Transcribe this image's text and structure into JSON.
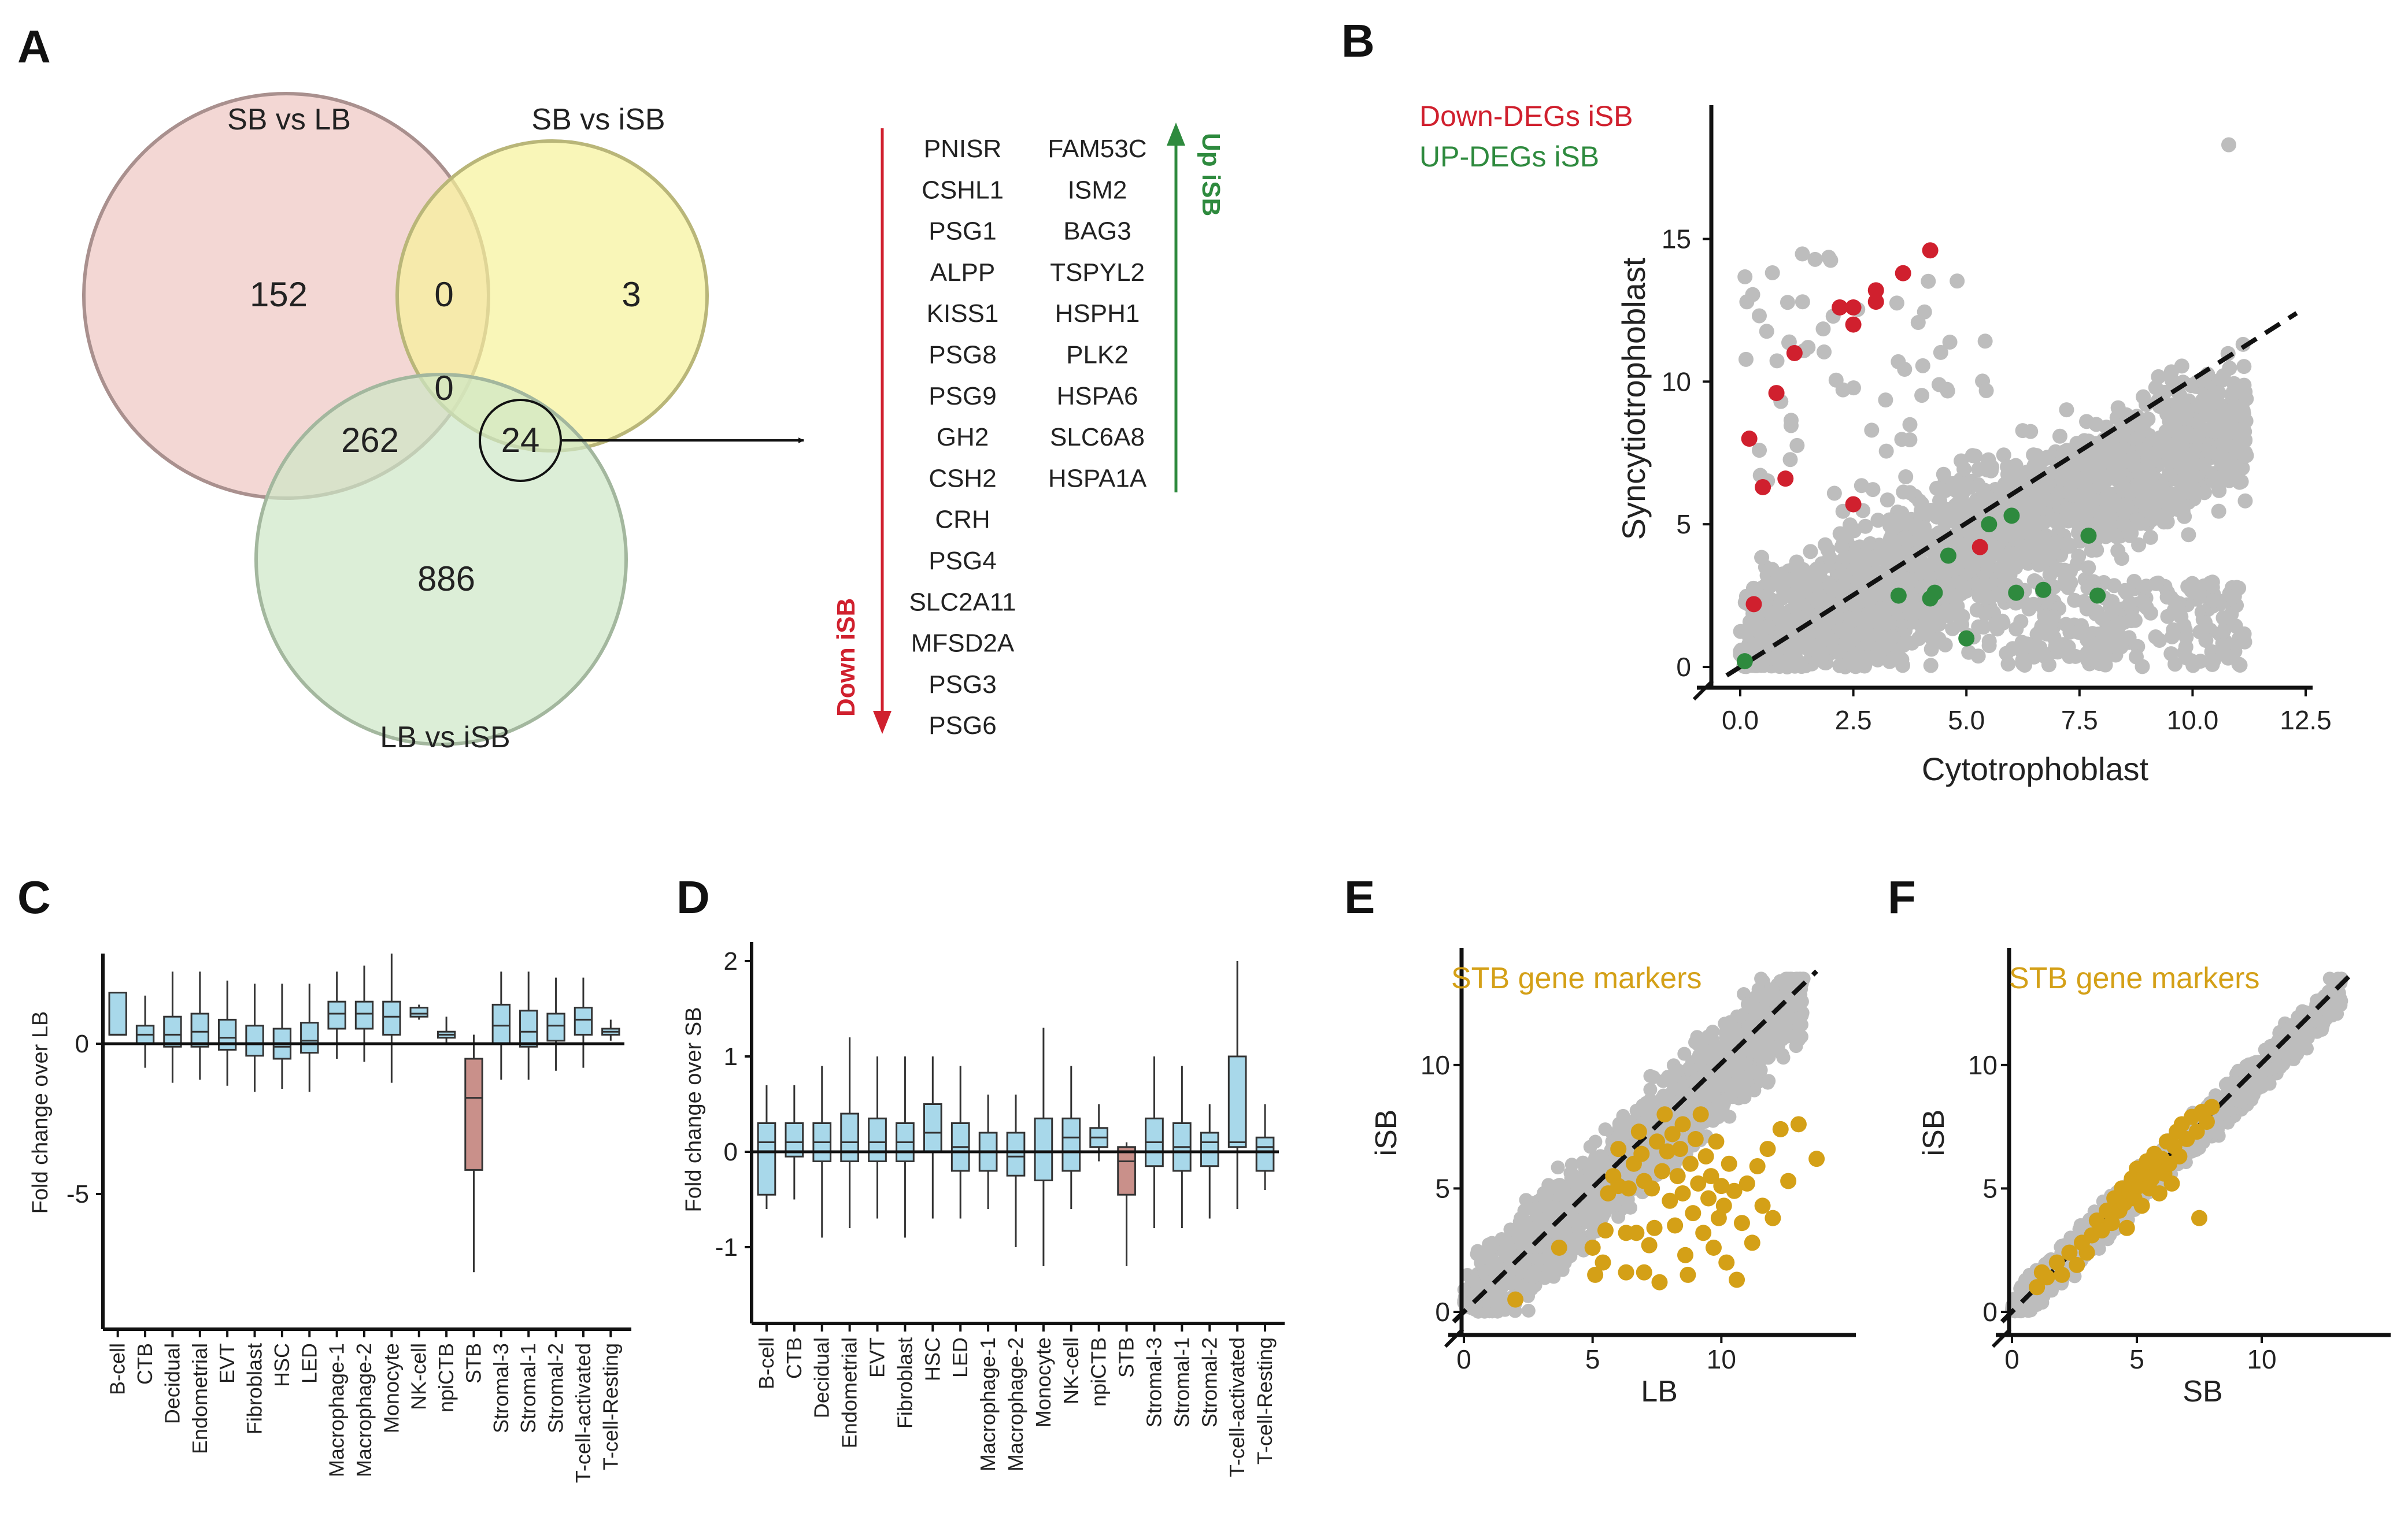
{
  "panels": {
    "A": "A",
    "B": "B",
    "C": "C",
    "D": "D",
    "E": "E",
    "F": "F"
  },
  "colors": {
    "venn_sb_lb": "#efc9c6",
    "venn_sb_isb": "#f6f29a",
    "venn_lb_isb": "#cde7c6",
    "down": "#d0202e",
    "up": "#2e8a3e",
    "box_fill": "#a8d8ea",
    "box_stb": "#c9908a",
    "points_bg": "#bdbdbd",
    "markers": "#d4a017"
  },
  "venn": {
    "labels": {
      "sb_lb": "SB vs LB",
      "sb_isb": "SB vs iSB",
      "lb_isb": "LB vs iSB"
    },
    "counts": {
      "sb_lb_only": "152",
      "sb_isb_only": "3",
      "lb_isb_only": "886",
      "sb_lb_and_sb_isb": "0",
      "all_three": "0",
      "sb_lb_and_lb_isb": "262",
      "sb_isb_and_lb_isb": "24"
    }
  },
  "genes": {
    "down": [
      "PNISR",
      "CSHL1",
      "PSG1",
      "ALPP",
      "KISS1",
      "PSG8",
      "PSG9",
      "GH2",
      "CSH2",
      "CRH",
      "PSG4",
      "SLC2A11",
      "MFSD2A",
      "PSG3",
      "PSG6"
    ],
    "up": [
      "FAM53C",
      "ISM2",
      "BAG3",
      "TSPYL2",
      "HSPH1",
      "PLK2",
      "HSPA6",
      "SLC6A8",
      "HSPA1A"
    ],
    "down_label": "Down iSB",
    "up_label": "Up iSB"
  },
  "chart_data": [
    {
      "id": "B",
      "type": "scatter",
      "xlabel": "Cytotrophoblast",
      "ylabel": "Syncytiotrophoblast",
      "xlim": [
        0,
        12.5
      ],
      "ylim": [
        0,
        19
      ],
      "xticks": [
        "0.0",
        "2.5",
        "5.0",
        "7.5",
        "10.0",
        "12.5"
      ],
      "yticks": [
        "0",
        "5",
        "10",
        "15"
      ],
      "legend": [
        "Down-DEGs iSB",
        "UP-DEGs iSB"
      ],
      "series": [
        {
          "name": "Down-DEGs iSB",
          "points": [
            [
              0.2,
              8.0
            ],
            [
              0.3,
              2.2
            ],
            [
              0.5,
              6.3
            ],
            [
              0.8,
              9.6
            ],
            [
              1.0,
              6.6
            ],
            [
              1.2,
              11.0
            ],
            [
              2.2,
              12.6
            ],
            [
              2.5,
              12.0
            ],
            [
              2.5,
              12.6
            ],
            [
              2.5,
              5.7
            ],
            [
              3.0,
              12.8
            ],
            [
              3.0,
              13.2
            ],
            [
              3.6,
              13.8
            ],
            [
              4.2,
              14.6
            ],
            [
              5.3,
              4.2
            ]
          ]
        },
        {
          "name": "UP-DEGs iSB",
          "points": [
            [
              0.1,
              0.2
            ],
            [
              3.5,
              2.5
            ],
            [
              4.2,
              2.4
            ],
            [
              4.3,
              2.6
            ],
            [
              4.6,
              3.9
            ],
            [
              5.0,
              1.0
            ],
            [
              5.5,
              5.0
            ],
            [
              6.0,
              5.3
            ],
            [
              6.1,
              2.6
            ],
            [
              6.7,
              2.7
            ],
            [
              7.7,
              4.6
            ],
            [
              7.9,
              2.5
            ]
          ]
        }
      ]
    },
    {
      "id": "C",
      "type": "box",
      "ylabel": "Fold change over LB",
      "ylim": [
        -9.5,
        3.0
      ],
      "yticks": [
        "0",
        "-5"
      ],
      "categories": [
        "B-cell",
        "CTB",
        "Decidual",
        "Endometrial",
        "EVT",
        "Fibroblast",
        "HSC",
        "LED",
        "Macrophage-1",
        "Macrophage-2",
        "Monocyte",
        "NK-cell",
        "npiCTB",
        "STB",
        "Stromal-3",
        "Stromal-1",
        "Stromal-2",
        "T-cell-activated",
        "T-cell-Resting"
      ],
      "boxes": [
        [
          0.3,
          0.3,
          0.3,
          1.7,
          1.7
        ],
        [
          -0.8,
          0.0,
          0.3,
          0.6,
          1.6
        ],
        [
          -1.3,
          -0.1,
          0.3,
          0.9,
          2.4
        ],
        [
          -1.2,
          -0.1,
          0.4,
          1.0,
          2.4
        ],
        [
          -1.4,
          -0.2,
          0.2,
          0.8,
          2.1
        ],
        [
          -1.6,
          -0.4,
          0.0,
          0.6,
          2.0
        ],
        [
          -1.5,
          -0.5,
          -0.1,
          0.5,
          2.0
        ],
        [
          -1.6,
          -0.3,
          0.1,
          0.7,
          2.0
        ],
        [
          -0.5,
          0.5,
          1.0,
          1.4,
          2.4
        ],
        [
          -0.6,
          0.5,
          1.0,
          1.4,
          2.6
        ],
        [
          -1.3,
          0.3,
          0.9,
          1.4,
          3.0
        ],
        [
          0.8,
          0.9,
          1.0,
          1.2,
          1.3
        ],
        [
          0.0,
          0.2,
          0.3,
          0.4,
          0.9
        ],
        [
          -7.6,
          -4.2,
          -1.8,
          -0.5,
          0.3
        ],
        [
          -1.2,
          0.0,
          0.6,
          1.3,
          2.4
        ],
        [
          -1.2,
          -0.1,
          0.4,
          1.1,
          2.4
        ],
        [
          -0.9,
          0.1,
          0.6,
          1.0,
          2.2
        ],
        [
          -0.8,
          0.3,
          0.8,
          1.2,
          2.2
        ],
        [
          0.1,
          0.3,
          0.4,
          0.5,
          0.8
        ]
      ]
    },
    {
      "id": "D",
      "type": "box",
      "ylabel": "Fold change over SB",
      "ylim": [
        -1.8,
        2.2
      ],
      "yticks": [
        "2",
        "1",
        "0",
        "-1"
      ],
      "categories": [
        "B-cell",
        "CTB",
        "Decidual",
        "Endometrial",
        "EVT",
        "Fibroblast",
        "HSC",
        "LED",
        "Macrophage-1",
        "Macrophage-2",
        "Monocyte",
        "NK-cell",
        "npiCTB",
        "STB",
        "Stromal-3",
        "Stromal-1",
        "Stromal-2",
        "T-cell-activated",
        "T-cell-Resting"
      ],
      "boxes": [
        [
          -0.6,
          -0.45,
          0.1,
          0.3,
          0.7
        ],
        [
          -0.5,
          -0.05,
          0.1,
          0.3,
          0.7
        ],
        [
          -0.9,
          -0.1,
          0.1,
          0.3,
          0.9
        ],
        [
          -0.8,
          -0.1,
          0.1,
          0.4,
          1.2
        ],
        [
          -0.7,
          -0.1,
          0.1,
          0.35,
          1.0
        ],
        [
          -0.9,
          -0.1,
          0.1,
          0.3,
          1.0
        ],
        [
          -0.7,
          0.0,
          0.2,
          0.5,
          1.0
        ],
        [
          -0.7,
          -0.2,
          0.05,
          0.3,
          0.9
        ],
        [
          -0.6,
          -0.2,
          0.0,
          0.2,
          0.6
        ],
        [
          -1.0,
          -0.25,
          -0.05,
          0.2,
          0.6
        ],
        [
          -1.2,
          -0.3,
          0.0,
          0.35,
          1.3
        ],
        [
          -0.6,
          -0.2,
          0.15,
          0.35,
          0.9
        ],
        [
          -0.1,
          0.05,
          0.15,
          0.25,
          0.5
        ],
        [
          -1.2,
          -0.45,
          -0.1,
          0.05,
          0.1
        ],
        [
          -0.8,
          -0.15,
          0.1,
          0.35,
          1.0
        ],
        [
          -0.8,
          -0.2,
          0.05,
          0.3,
          0.9
        ],
        [
          -0.7,
          -0.15,
          0.1,
          0.2,
          0.5
        ],
        [
          -0.6,
          0.05,
          0.1,
          1.0,
          2.0
        ],
        [
          -0.4,
          -0.2,
          0.05,
          0.15,
          0.5
        ]
      ]
    },
    {
      "id": "E",
      "type": "scatter",
      "xlabel": "LB",
      "ylabel": "iSB",
      "legend": "STB gene markers",
      "xlim": [
        0,
        15
      ],
      "ylim": [
        0,
        14
      ],
      "xticks": [
        "0",
        "5",
        "10"
      ],
      "yticks": [
        "0",
        "5",
        "10"
      ],
      "markers": [
        [
          2,
          0.5
        ],
        [
          3.7,
          2.6
        ],
        [
          5.0,
          2.6
        ],
        [
          5.1,
          1.5
        ],
        [
          5.4,
          2.0
        ],
        [
          5.5,
          3.3
        ],
        [
          5.6,
          4.8
        ],
        [
          5.8,
          5.5
        ],
        [
          6.0,
          6.6
        ],
        [
          6.0,
          5.1
        ],
        [
          6.3,
          1.6
        ],
        [
          6.3,
          3.2
        ],
        [
          6.4,
          5.0
        ],
        [
          6.6,
          6.0
        ],
        [
          6.7,
          3.2
        ],
        [
          6.8,
          7.3
        ],
        [
          6.9,
          6.4
        ],
        [
          7.0,
          1.6
        ],
        [
          7.0,
          5.3
        ],
        [
          7.2,
          2.7
        ],
        [
          7.3,
          5.0
        ],
        [
          7.4,
          3.4
        ],
        [
          7.5,
          6.9
        ],
        [
          7.6,
          1.2
        ],
        [
          7.7,
          5.7
        ],
        [
          7.8,
          8.0
        ],
        [
          7.9,
          6.5
        ],
        [
          8.0,
          4.5
        ],
        [
          8.1,
          7.2
        ],
        [
          8.2,
          3.5
        ],
        [
          8.3,
          5.5
        ],
        [
          8.4,
          6.6
        ],
        [
          8.5,
          7.6
        ],
        [
          8.5,
          4.8
        ],
        [
          8.6,
          2.3
        ],
        [
          8.7,
          1.5
        ],
        [
          8.8,
          6.0
        ],
        [
          8.9,
          4.0
        ],
        [
          9.0,
          7.0
        ],
        [
          9.1,
          5.2
        ],
        [
          9.2,
          8.0
        ],
        [
          9.3,
          3.2
        ],
        [
          9.4,
          6.3
        ],
        [
          9.5,
          4.6
        ],
        [
          9.6,
          5.5
        ],
        [
          9.7,
          2.6
        ],
        [
          9.8,
          6.9
        ],
        [
          9.9,
          3.8
        ],
        [
          10.0,
          5.1
        ],
        [
          10.1,
          4.3
        ],
        [
          10.2,
          2.0
        ],
        [
          10.3,
          6.0
        ],
        [
          10.5,
          4.9
        ],
        [
          10.6,
          1.3
        ],
        [
          10.8,
          3.6
        ],
        [
          11.0,
          5.2
        ],
        [
          11.2,
          2.8
        ],
        [
          11.4,
          5.9
        ],
        [
          11.6,
          4.3
        ],
        [
          11.8,
          6.6
        ],
        [
          12.0,
          3.8
        ],
        [
          12.3,
          7.4
        ],
        [
          12.6,
          5.3
        ],
        [
          13.0,
          7.6
        ],
        [
          13.7,
          6.2
        ]
      ]
    },
    {
      "id": "F",
      "type": "scatter",
      "xlabel": "SB",
      "ylabel": "iSB",
      "legend": "STB gene markers",
      "xlim": [
        0,
        15
      ],
      "ylim": [
        0,
        14
      ],
      "xticks": [
        "0",
        "5",
        "10"
      ],
      "yticks": [
        "0",
        "5",
        "10"
      ],
      "markers": [
        [
          1.0,
          1.0
        ],
        [
          1.2,
          1.6
        ],
        [
          1.4,
          1.4
        ],
        [
          1.8,
          2.0
        ],
        [
          2.0,
          1.5
        ],
        [
          2.3,
          2.4
        ],
        [
          2.6,
          1.9
        ],
        [
          2.8,
          2.8
        ],
        [
          3.0,
          2.4
        ],
        [
          3.2,
          3.1
        ],
        [
          3.4,
          3.7
        ],
        [
          3.6,
          3.3
        ],
        [
          3.8,
          4.1
        ],
        [
          4.0,
          3.6
        ],
        [
          4.1,
          4.6
        ],
        [
          4.3,
          4.1
        ],
        [
          4.4,
          5.0
        ],
        [
          4.5,
          4.4
        ],
        [
          4.6,
          3.4
        ],
        [
          4.7,
          4.9
        ],
        [
          4.8,
          5.4
        ],
        [
          4.9,
          4.6
        ],
        [
          5.0,
          5.8
        ],
        [
          5.1,
          5.1
        ],
        [
          5.2,
          4.3
        ],
        [
          5.3,
          5.6
        ],
        [
          5.4,
          6.1
        ],
        [
          5.5,
          5.0
        ],
        [
          5.6,
          5.4
        ],
        [
          5.7,
          6.4
        ],
        [
          5.8,
          5.9
        ],
        [
          5.9,
          4.8
        ],
        [
          6.0,
          6.2
        ],
        [
          6.1,
          5.6
        ],
        [
          6.2,
          6.9
        ],
        [
          6.3,
          6.0
        ],
        [
          6.4,
          5.2
        ],
        [
          6.5,
          6.7
        ],
        [
          6.6,
          7.3
        ],
        [
          6.7,
          6.3
        ],
        [
          6.8,
          7.6
        ],
        [
          7.0,
          7.0
        ],
        [
          7.2,
          7.9
        ],
        [
          7.4,
          7.3
        ],
        [
          7.6,
          8.1
        ],
        [
          7.8,
          7.7
        ],
        [
          8.0,
          8.3
        ],
        [
          7.5,
          3.8
        ]
      ]
    }
  ]
}
